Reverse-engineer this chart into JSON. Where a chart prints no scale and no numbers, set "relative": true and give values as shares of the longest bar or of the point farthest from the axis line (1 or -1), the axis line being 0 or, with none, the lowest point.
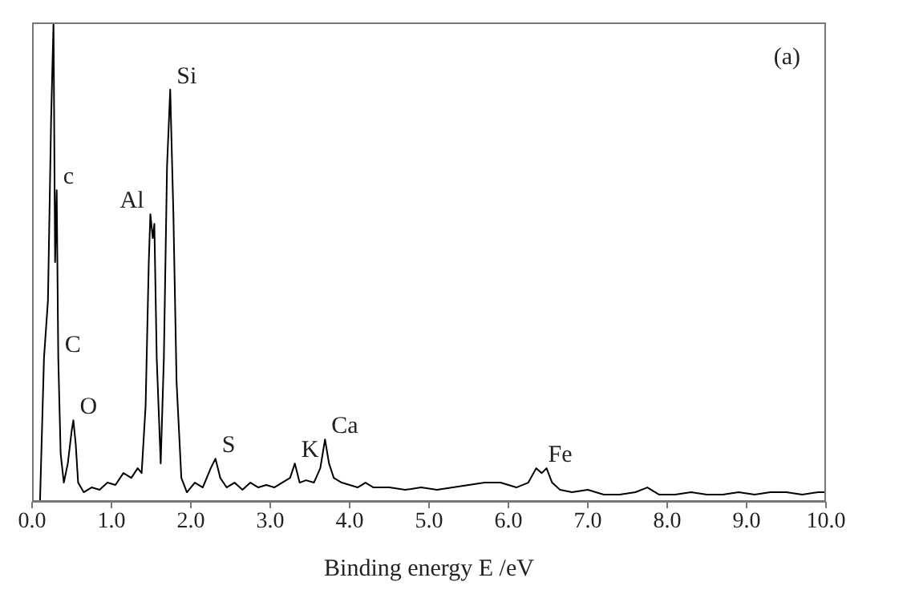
{
  "chart_data": {
    "type": "line",
    "relative": true,
    "xlabel": "Binding energy E /eV",
    "xlim": [
      0,
      10
    ],
    "xticks": [
      {
        "value": 0,
        "label": "0.0"
      },
      {
        "value": 1,
        "label": "1.0"
      },
      {
        "value": 2,
        "label": "2.0"
      },
      {
        "value": 3,
        "label": "3.0"
      },
      {
        "value": 4,
        "label": "4.0"
      },
      {
        "value": 5,
        "label": "5.0"
      },
      {
        "value": 6,
        "label": "6.0"
      },
      {
        "value": 7,
        "label": "7.0"
      },
      {
        "value": 8,
        "label": "8.0"
      },
      {
        "value": 9,
        "label": "9.0"
      },
      {
        "value": 10,
        "label": "10.0"
      }
    ],
    "grid": false,
    "legend": false,
    "marker": "none",
    "line_style": "solid",
    "series": [
      {
        "color": "#000000",
        "x": [
          0.1,
          0.15,
          0.2,
          0.24,
          0.27,
          0.29,
          0.31,
          0.33,
          0.36,
          0.4,
          0.45,
          0.5,
          0.52,
          0.55,
          0.58,
          0.65,
          0.75,
          0.85,
          0.95,
          1.05,
          1.15,
          1.25,
          1.33,
          1.38,
          1.43,
          1.47,
          1.49,
          1.52,
          1.54,
          1.57,
          1.62,
          1.66,
          1.7,
          1.74,
          1.78,
          1.82,
          1.88,
          1.95,
          2.05,
          2.15,
          2.25,
          2.31,
          2.37,
          2.45,
          2.55,
          2.65,
          2.75,
          2.85,
          2.95,
          3.05,
          3.15,
          3.25,
          3.31,
          3.37,
          3.45,
          3.55,
          3.63,
          3.69,
          3.74,
          3.8,
          3.9,
          4.0,
          4.1,
          4.2,
          4.3,
          4.5,
          4.7,
          4.9,
          5.1,
          5.3,
          5.5,
          5.7,
          5.9,
          6.1,
          6.25,
          6.35,
          6.42,
          6.48,
          6.55,
          6.65,
          6.8,
          7.0,
          7.2,
          7.4,
          7.6,
          7.75,
          7.9,
          8.1,
          8.3,
          8.5,
          8.7,
          8.9,
          9.1,
          9.3,
          9.5,
          9.7,
          9.9,
          10.0
        ],
        "values": [
          0.0,
          0.3,
          0.42,
          0.8,
          1.0,
          0.5,
          0.65,
          0.3,
          0.1,
          0.04,
          0.08,
          0.15,
          0.17,
          0.12,
          0.04,
          0.02,
          0.03,
          0.025,
          0.04,
          0.035,
          0.06,
          0.05,
          0.07,
          0.06,
          0.2,
          0.5,
          0.6,
          0.55,
          0.58,
          0.3,
          0.08,
          0.3,
          0.7,
          0.86,
          0.6,
          0.25,
          0.05,
          0.02,
          0.04,
          0.03,
          0.07,
          0.09,
          0.05,
          0.03,
          0.04,
          0.025,
          0.04,
          0.03,
          0.035,
          0.03,
          0.04,
          0.05,
          0.08,
          0.04,
          0.045,
          0.04,
          0.07,
          0.13,
          0.08,
          0.05,
          0.04,
          0.035,
          0.03,
          0.04,
          0.03,
          0.03,
          0.025,
          0.03,
          0.025,
          0.03,
          0.035,
          0.04,
          0.04,
          0.03,
          0.04,
          0.07,
          0.06,
          0.07,
          0.04,
          0.025,
          0.02,
          0.025,
          0.015,
          0.015,
          0.02,
          0.03,
          0.015,
          0.015,
          0.02,
          0.015,
          0.015,
          0.02,
          0.015,
          0.02,
          0.02,
          0.015,
          0.02,
          0.02
        ]
      }
    ],
    "annotations": [
      {
        "text": "c",
        "x": 0.31,
        "y": 0.65
      },
      {
        "text": "C",
        "x": 0.33,
        "y": 0.3
      },
      {
        "text": "O",
        "x": 0.52,
        "y": 0.17
      },
      {
        "text": "Al",
        "x": 1.49,
        "y": 0.6
      },
      {
        "text": "Si",
        "x": 1.74,
        "y": 0.86
      },
      {
        "text": "S",
        "x": 2.31,
        "y": 0.09
      },
      {
        "text": "K",
        "x": 3.31,
        "y": 0.08
      },
      {
        "text": "Ca",
        "x": 3.69,
        "y": 0.13
      },
      {
        "text": "Fe",
        "x": 6.42,
        "y": 0.07
      },
      "(a)"
    ]
  }
}
